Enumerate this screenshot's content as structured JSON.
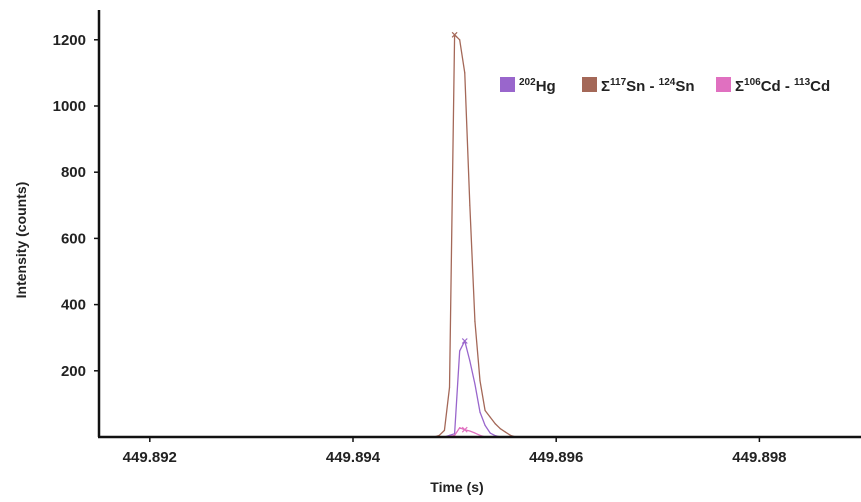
{
  "chart_data": {
    "type": "line",
    "title": "",
    "xlabel": "Time (s)",
    "ylabel": "Intensity (counts)",
    "xlim": [
      449.8915,
      449.899
    ],
    "ylim": [
      0,
      1290
    ],
    "x_ticks": [
      449.892,
      449.894,
      449.896,
      449.898
    ],
    "x_tick_labels": [
      "449.892",
      "449.894",
      "449.896",
      "449.898"
    ],
    "y_ticks": [
      200,
      400,
      600,
      800,
      1000,
      1200
    ],
    "y_tick_labels": [
      "200",
      "400",
      "600",
      "800",
      "1000",
      "1200"
    ],
    "grid": false,
    "legend_position": "top-right",
    "series": [
      {
        "name": "202Hg",
        "legend": {
          "pre": "",
          "sup1": "202",
          "mid": "Hg",
          "sup2": "",
          "post": ""
        },
        "color": "#9966cc",
        "legend_color": "#9966cc",
        "marker_index": 4,
        "x": [
          449.8949,
          449.89495,
          449.895,
          449.89505,
          449.8951,
          449.89515,
          449.8952,
          449.89525,
          449.8953,
          449.89535,
          449.8954,
          449.89545,
          449.8955,
          449.8956,
          449.8957
        ],
        "y": [
          0,
          5,
          10,
          260,
          290,
          230,
          160,
          75,
          35,
          12,
          4,
          0,
          0,
          0,
          0
        ]
      },
      {
        "name": "Σ117Sn - 124Sn",
        "legend": {
          "pre": "Σ",
          "sup1": "117",
          "mid": "Sn - ",
          "sup2": "124",
          "post": "Sn"
        },
        "color": "#a46858",
        "legend_color": "#a46858",
        "marker_index": 4,
        "x": [
          449.8948,
          449.89485,
          449.8949,
          449.89495,
          449.895,
          449.89505,
          449.8951,
          449.89515,
          449.8952,
          449.89525,
          449.8953,
          449.89535,
          449.8954,
          449.89545,
          449.8955,
          449.89555,
          449.8956,
          449.8957
        ],
        "y": [
          0,
          5,
          20,
          150,
          1215,
          1200,
          1100,
          700,
          350,
          170,
          80,
          60,
          40,
          25,
          15,
          5,
          0,
          0
        ]
      },
      {
        "name": "Σ106Cd - 113Cd",
        "legend": {
          "pre": "Σ",
          "sup1": "106",
          "mid": "Cd - ",
          "sup2": "113",
          "post": "Cd"
        },
        "color": "#e070c0",
        "legend_color": "#e070c0",
        "marker_index": 4,
        "x": [
          449.8949,
          449.89495,
          449.895,
          449.89505,
          449.8951,
          449.89515,
          449.8952,
          449.89525,
          449.8953,
          449.89535,
          449.8954
        ],
        "y": [
          0,
          2,
          5,
          28,
          22,
          18,
          12,
          5,
          0,
          0,
          0
        ]
      }
    ]
  }
}
